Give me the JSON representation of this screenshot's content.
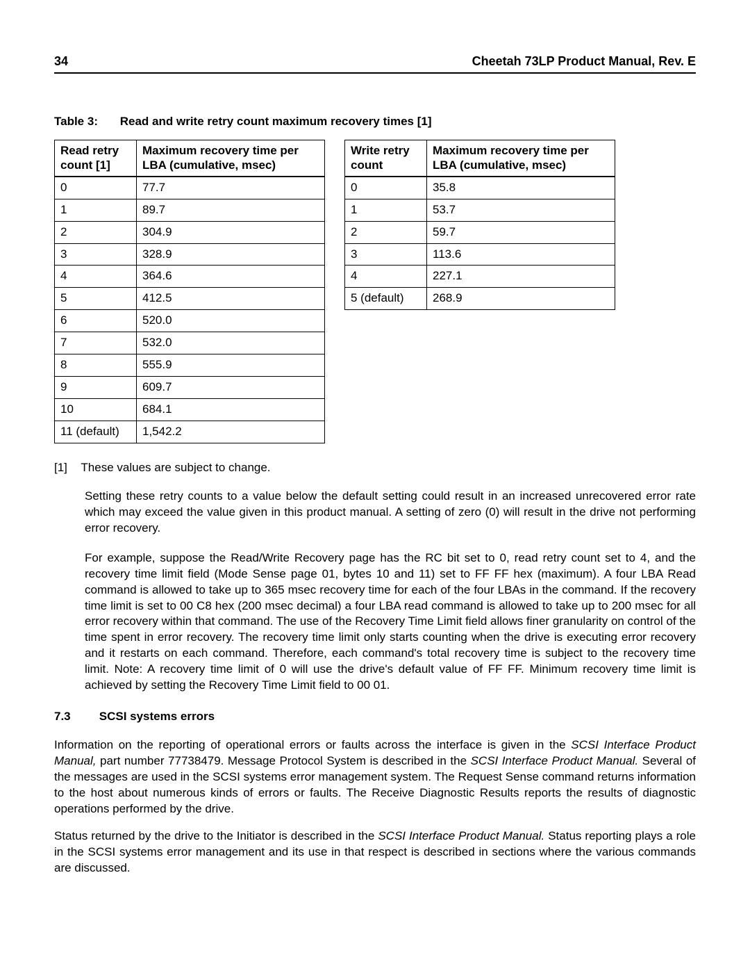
{
  "header": {
    "page_number": "34",
    "title": "Cheetah 73LP Product Manual, Rev. E"
  },
  "table_caption": {
    "label": "Table 3:",
    "text": "Read and write retry count maximum recovery times [1]"
  },
  "read_table": {
    "col1": "Read retry count [1]",
    "col2": "Maximum recovery time per LBA (cumulative, msec)",
    "rows": [
      [
        "0",
        "77.7"
      ],
      [
        "1",
        "89.7"
      ],
      [
        "2",
        "304.9"
      ],
      [
        "3",
        "328.9"
      ],
      [
        "4",
        "364.6"
      ],
      [
        "5",
        "412.5"
      ],
      [
        "6",
        "520.0"
      ],
      [
        "7",
        "532.0"
      ],
      [
        "8",
        "555.9"
      ],
      [
        "9",
        "609.7"
      ],
      [
        "10",
        "684.1"
      ],
      [
        "11 (default)",
        "1,542.2"
      ]
    ]
  },
  "write_table": {
    "col1": "Write retry count",
    "col2": "Maximum recovery time per LBA (cumulative, msec)",
    "rows": [
      [
        "0",
        "35.8"
      ],
      [
        "1",
        "53.7"
      ],
      [
        "2",
        "59.7"
      ],
      [
        "3",
        "113.6"
      ],
      [
        "4",
        "227.1"
      ],
      [
        "5 (default)",
        "268.9"
      ]
    ]
  },
  "footnote": {
    "num": "[1]",
    "text": "These values are subject to change."
  },
  "para1": "Setting these retry counts to a value below the default setting could result in an increased unrecovered error rate which may exceed the value given in this product manual. A setting of zero (0) will result in the drive not performing error recovery.",
  "para2": "For example, suppose the Read/Write Recovery page has the RC bit set to 0, read retry count set to 4, and the recovery time limit field (Mode Sense page 01, bytes 10 and 11) set to FF FF hex (maximum). A four LBA Read command is allowed to take up to 365 msec recovery time for each of the four LBAs in the command. If the recovery time limit is set to 00 C8 hex (200 msec decimal) a four LBA read command is allowed to take up to 200 msec for all error recovery within that command. The use of the Recovery Time Limit field allows finer granularity on control of the time spent in error recovery. The recovery time limit only starts counting when the drive is executing error recovery and it restarts on each command. Therefore, each command's total recovery time is subject to the recovery time limit. Note: A recovery time limit of 0 will use the drive's default value of FF FF. Minimum recovery time limit is achieved by setting the Recovery Time Limit field to 00 01.",
  "section": {
    "num": "7.3",
    "title": "SCSI systems errors"
  },
  "para3_a": "Information on the reporting of operational errors or faults across the interface is given in the ",
  "para3_i1": "SCSI Interface Product Manual,",
  "para3_b": " part number 77738479. Message Protocol System is described in the ",
  "para3_i2": "SCSI Interface Product Manual.",
  "para3_c": " Several of the messages are used in the SCSI systems error management system. The Request Sense command returns information to the host about numerous kinds of errors or faults. The Receive Diagnostic Results reports the results of diagnostic operations performed by the drive.",
  "para4_a": "Status returned by the drive to the Initiator is described in the ",
  "para4_i1": "SCSI Interface Product Manual.",
  "para4_b": " Status reporting plays a role in the SCSI systems error management and its use in that respect is described in sections where the various commands are discussed."
}
